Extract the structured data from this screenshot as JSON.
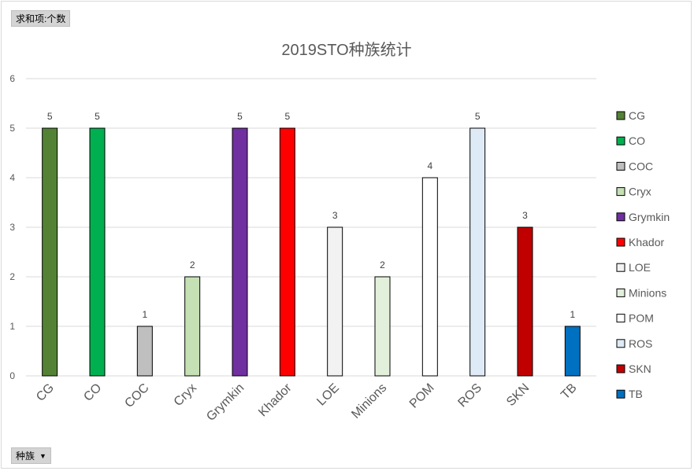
{
  "pivot": {
    "value_field": "求和项:个数",
    "category_field": "种族"
  },
  "chart_data": {
    "type": "bar",
    "title": "2019STO种族统计",
    "xlabel": "",
    "ylabel": "",
    "categories": [
      "CG",
      "CO",
      "COC",
      "Cryx",
      "Grymkin",
      "Khador",
      "LOE",
      "Minions",
      "POM",
      "ROS",
      "SKN",
      "TB"
    ],
    "values": [
      5,
      5,
      1,
      2,
      5,
      5,
      3,
      2,
      4,
      5,
      3,
      1
    ],
    "colors": [
      "#548235",
      "#00b050",
      "#bfbfbf",
      "#c5e0b4",
      "#7030a0",
      "#ff0000",
      "#f2f2f2",
      "#e2efda",
      "#ffffff",
      "#deebf7",
      "#c00000",
      "#0070c0"
    ],
    "ylim": [
      0,
      6
    ],
    "yticks": [
      0,
      1,
      2,
      3,
      4,
      5,
      6
    ],
    "grid": true,
    "data_labels": true,
    "legend_position": "right"
  }
}
